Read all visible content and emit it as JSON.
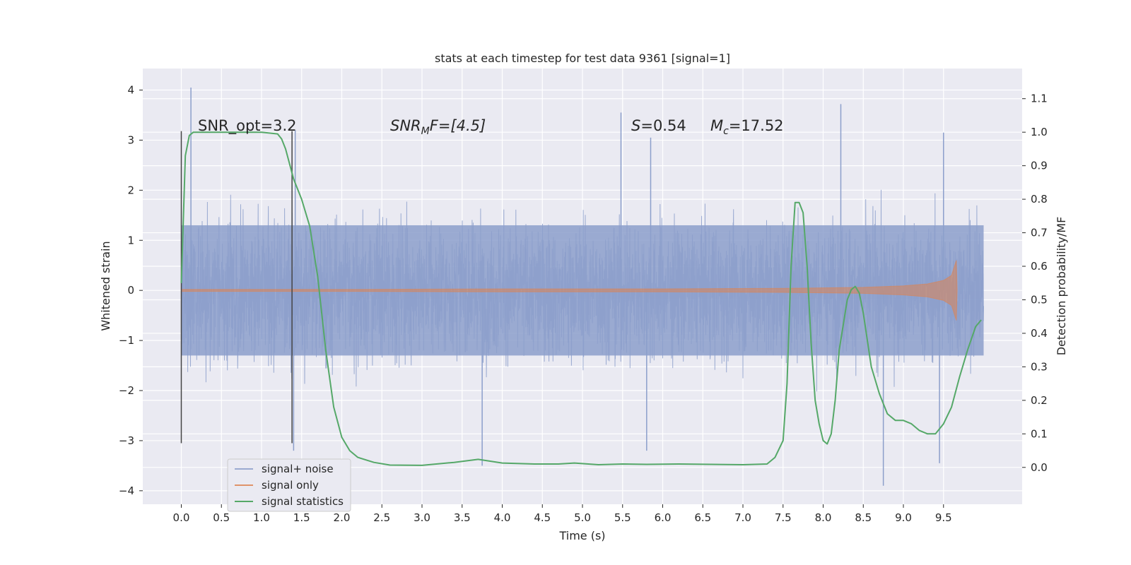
{
  "chart_data": {
    "type": "line",
    "title": "stats at each timestep for test data 9361 [signal=1]",
    "xlabel": "Time (s)",
    "ylabel": "Whitened strain",
    "y2label": "Detection probability/MF",
    "xlim": [
      -0.48,
      10.48
    ],
    "ylim": [
      -4.27,
      4.43
    ],
    "y2lim": [
      -0.11,
      1.19
    ],
    "x_ticks": [
      0.0,
      0.5,
      1.0,
      1.5,
      2.0,
      2.5,
      3.0,
      3.5,
      4.0,
      4.5,
      5.0,
      5.5,
      6.0,
      6.5,
      7.0,
      7.5,
      8.0,
      8.5,
      9.0,
      9.5
    ],
    "x_tick_labels": [
      "0.0",
      "0.5",
      "1.0",
      "1.5",
      "2.0",
      "2.5",
      "3.0",
      "3.5",
      "4.0",
      "4.5",
      "5.0",
      "5.5",
      "6.0",
      "6.5",
      "7.0",
      "7.5",
      "8.0",
      "8.5",
      "9.0",
      "9.5"
    ],
    "y_ticks": [
      4,
      3,
      2,
      1,
      0,
      -1,
      -2,
      -3,
      -4
    ],
    "y_tick_labels": [
      "4",
      "3",
      "2",
      "1",
      "0",
      "−1",
      "−2",
      "−3",
      "−4"
    ],
    "y2_ticks": [
      1.1,
      1.0,
      0.9,
      0.8,
      0.7,
      0.6,
      0.5,
      0.4,
      0.3,
      0.2,
      0.1,
      0.0
    ],
    "y2_tick_labels": [
      "1.1",
      "1.0",
      "0.9",
      "0.8",
      "0.7",
      "0.6",
      "0.5",
      "0.4",
      "0.3",
      "0.2",
      "0.1",
      "0.0"
    ],
    "grid": true,
    "legend_position": "lower-left",
    "series": [
      {
        "name": "signal+ noise",
        "axis": "left",
        "color": "#8c9fcb",
        "x_range": [
          0.0,
          10.0
        ],
        "typical_band": [
          -1.3,
          1.3
        ],
        "peaks_up": [
          [
            0.12,
            4.05
          ],
          [
            5.48,
            3.55
          ],
          [
            8.22,
            3.72
          ],
          [
            9.5,
            3.15
          ],
          [
            1.42,
            3.2
          ],
          [
            5.85,
            3.05
          ]
        ],
        "peaks_down": [
          [
            8.75,
            -3.9
          ],
          [
            3.75,
            -3.5
          ],
          [
            9.45,
            -3.45
          ],
          [
            1.4,
            -3.2
          ],
          [
            5.8,
            -3.2
          ]
        ]
      },
      {
        "name": "signal only",
        "axis": "left",
        "color": "#dd8452",
        "envelope_x": [
          0.0,
          2.0,
          4.0,
          6.0,
          7.5,
          8.5,
          9.0,
          9.3,
          9.5,
          9.6,
          9.66,
          9.67
        ],
        "envelope_amp": [
          0.02,
          0.02,
          0.03,
          0.03,
          0.04,
          0.06,
          0.09,
          0.13,
          0.2,
          0.3,
          0.6,
          0.0
        ]
      },
      {
        "name": "signal statistics",
        "axis": "right",
        "color": "#55a868",
        "x": [
          0.0,
          0.05,
          0.1,
          0.15,
          0.2,
          0.3,
          0.5,
          0.8,
          1.0,
          1.2,
          1.25,
          1.3,
          1.4,
          1.5,
          1.6,
          1.7,
          1.8,
          1.9,
          2.0,
          2.1,
          2.2,
          2.4,
          2.6,
          3.0,
          3.4,
          3.7,
          4.0,
          4.4,
          4.7,
          4.9,
          5.2,
          5.5,
          5.8,
          6.2,
          7.0,
          7.3,
          7.4,
          7.5,
          7.55,
          7.6,
          7.65,
          7.7,
          7.75,
          7.8,
          7.85,
          7.9,
          7.95,
          8.0,
          8.05,
          8.1,
          8.15,
          8.2,
          8.3,
          8.35,
          8.4,
          8.45,
          8.5,
          8.6,
          8.7,
          8.8,
          8.9,
          9.0,
          9.1,
          9.2,
          9.3,
          9.4,
          9.5,
          9.6,
          9.7,
          9.8,
          9.9,
          9.97
        ],
        "y": [
          0.55,
          0.93,
          0.99,
          1.0,
          1.0,
          1.0,
          1.0,
          1.0,
          1.0,
          0.995,
          0.98,
          0.95,
          0.86,
          0.8,
          0.72,
          0.57,
          0.35,
          0.18,
          0.09,
          0.05,
          0.03,
          0.015,
          0.007,
          0.006,
          0.015,
          0.024,
          0.013,
          0.01,
          0.01,
          0.013,
          0.008,
          0.01,
          0.009,
          0.01,
          0.008,
          0.01,
          0.03,
          0.08,
          0.25,
          0.6,
          0.79,
          0.79,
          0.76,
          0.6,
          0.37,
          0.2,
          0.13,
          0.08,
          0.07,
          0.1,
          0.2,
          0.35,
          0.5,
          0.53,
          0.54,
          0.52,
          0.46,
          0.3,
          0.22,
          0.16,
          0.14,
          0.14,
          0.13,
          0.11,
          0.1,
          0.1,
          0.13,
          0.18,
          0.27,
          0.35,
          0.42,
          0.44
        ]
      }
    ],
    "vertical_markers": [
      {
        "x": 0.0,
        "y_range": [
          -3.05,
          3.18
        ]
      },
      {
        "x": 1.38,
        "y_range": [
          -3.05,
          3.18
        ]
      }
    ],
    "annotations": {
      "snr_opt": "SNR_opt=3.2",
      "snr_mf_symbol": "SNR",
      "snr_mf_sub": "M",
      "snr_mf_rest": "F=[4.5]",
      "s_symbol": "S",
      "s_rest": "=0.54",
      "mc_symbol": "M",
      "mc_sub": "c",
      "mc_rest": "=17.52"
    }
  }
}
